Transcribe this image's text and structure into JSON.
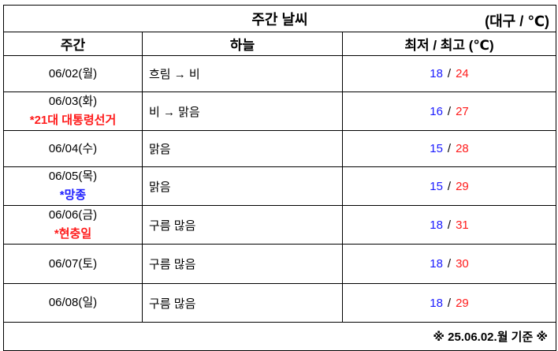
{
  "title": "주간 날씨",
  "unit": "(대구 / ℃)",
  "headers": [
    "주간",
    "하늘",
    "최저 / 최고 (℃)"
  ],
  "colors": {
    "low": "#1a1aff",
    "high": "#ff1a1a"
  },
  "rows": [
    {
      "date": "06/02(월)",
      "note": "",
      "sky": "흐림 → 비",
      "low": "18",
      "high": "24"
    },
    {
      "date": "06/03(화)",
      "note": "*21대 대통령선거",
      "sky": "비 → 맑음",
      "low": "16",
      "high": "27"
    },
    {
      "date": "06/04(수)",
      "note": "",
      "sky": "맑음",
      "low": "15",
      "high": "28"
    },
    {
      "date": "06/05(목)",
      "note": "*망종",
      "sky": "맑음",
      "low": "15",
      "high": "29"
    },
    {
      "date": "06/06(금)",
      "note": "*현충일",
      "sky": "구름 많음",
      "low": "18",
      "high": "31"
    },
    {
      "date": "06/07(토)",
      "note": "",
      "sky": "구름 많음",
      "low": "18",
      "high": "30"
    },
    {
      "date": "06/08(일)",
      "note": "",
      "sky": "구름 많음",
      "low": "18",
      "high": "29"
    }
  ],
  "slash": "/",
  "footer": "※ 25.06.02.월 기준 ※"
}
